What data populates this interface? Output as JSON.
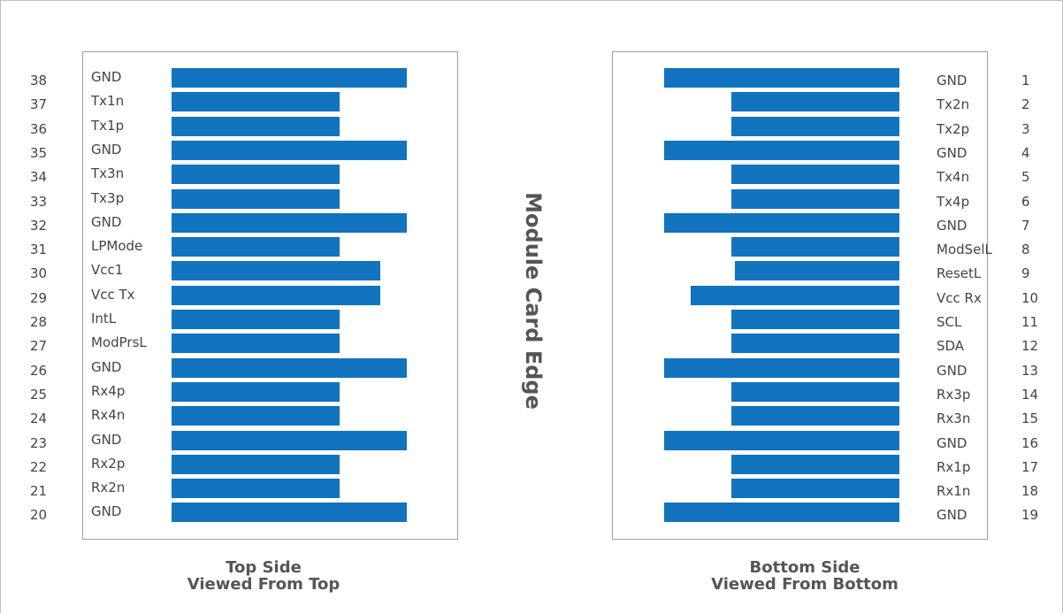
{
  "center_label": "Module Card Edge",
  "bar_color": "#1273bf",
  "top_side": {
    "caption_line1": "Top Side",
    "caption_line2": "Viewed From Top",
    "pins": [
      {
        "num": "38",
        "signal": "GND",
        "length": "long"
      },
      {
        "num": "37",
        "signal": "Tx1n",
        "length": "short"
      },
      {
        "num": "36",
        "signal": "Tx1p",
        "length": "short"
      },
      {
        "num": "35",
        "signal": "GND",
        "length": "long"
      },
      {
        "num": "34",
        "signal": "Tx3n",
        "length": "short"
      },
      {
        "num": "33",
        "signal": "Tx3p",
        "length": "short"
      },
      {
        "num": "32",
        "signal": "GND",
        "length": "long"
      },
      {
        "num": "31",
        "signal": "LPMode",
        "length": "short"
      },
      {
        "num": "30",
        "signal": "Vcc1",
        "length": "medium"
      },
      {
        "num": "29",
        "signal": "Vcc Tx",
        "length": "medium"
      },
      {
        "num": "28",
        "signal": "IntL",
        "length": "short"
      },
      {
        "num": "27",
        "signal": "ModPrsL",
        "length": "short"
      },
      {
        "num": "26",
        "signal": "GND",
        "length": "long"
      },
      {
        "num": "25",
        "signal": "Rx4p",
        "length": "short"
      },
      {
        "num": "24",
        "signal": "Rx4n",
        "length": "short"
      },
      {
        "num": "23",
        "signal": "GND",
        "length": "long"
      },
      {
        "num": "22",
        "signal": "Rx2p",
        "length": "short"
      },
      {
        "num": "21",
        "signal": "Rx2n",
        "length": "short"
      },
      {
        "num": "20",
        "signal": "GND",
        "length": "long"
      }
    ]
  },
  "bottom_side": {
    "caption_line1": "Bottom Side",
    "caption_line2": "Viewed From Bottom",
    "pins": [
      {
        "num": "1",
        "signal": "GND",
        "length": "long"
      },
      {
        "num": "2",
        "signal": "Tx2n",
        "length": "short"
      },
      {
        "num": "3",
        "signal": "Tx2p",
        "length": "short"
      },
      {
        "num": "4",
        "signal": "GND",
        "length": "long"
      },
      {
        "num": "5",
        "signal": "Tx4n",
        "length": "short"
      },
      {
        "num": "6",
        "signal": "Tx4p",
        "length": "short"
      },
      {
        "num": "7",
        "signal": "GND",
        "length": "long"
      },
      {
        "num": "8",
        "signal": "ModSelL",
        "length": "short"
      },
      {
        "num": "9",
        "signal": "ResetL",
        "length": "short2"
      },
      {
        "num": "10",
        "signal": "Vcc Rx",
        "length": "medium"
      },
      {
        "num": "11",
        "signal": "SCL",
        "length": "short"
      },
      {
        "num": "12",
        "signal": "SDA",
        "length": "short"
      },
      {
        "num": "13",
        "signal": "GND",
        "length": "long"
      },
      {
        "num": "14",
        "signal": "Rx3p",
        "length": "short"
      },
      {
        "num": "15",
        "signal": "Rx3n",
        "length": "short"
      },
      {
        "num": "16",
        "signal": "GND",
        "length": "long"
      },
      {
        "num": "17",
        "signal": "Rx1p",
        "length": "short"
      },
      {
        "num": "18",
        "signal": "Rx1n",
        "length": "short"
      },
      {
        "num": "19",
        "signal": "GND",
        "length": "long"
      }
    ]
  }
}
